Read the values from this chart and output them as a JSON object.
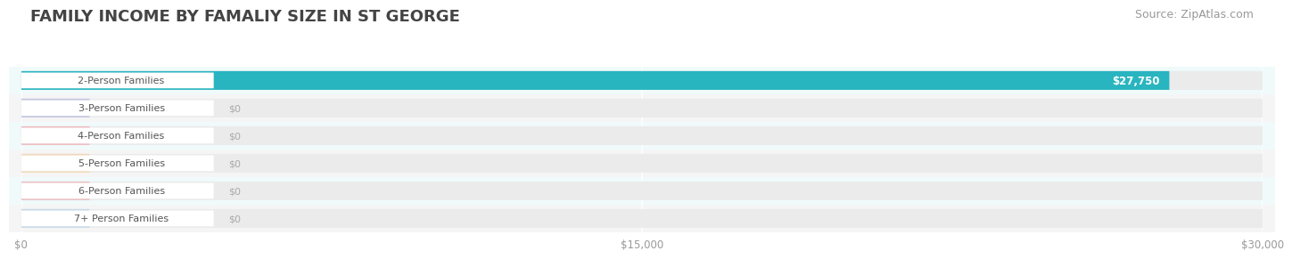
{
  "title": "FAMILY INCOME BY FAMALIY SIZE IN ST GEORGE",
  "source": "Source: ZipAtlas.com",
  "categories": [
    "2-Person Families",
    "3-Person Families",
    "4-Person Families",
    "5-Person Families",
    "6-Person Families",
    "7+ Person Families"
  ],
  "values": [
    27750,
    0,
    0,
    0,
    0,
    0
  ],
  "bar_colors": [
    "#29b5c0",
    "#9b9fd4",
    "#f0909a",
    "#f5c98a",
    "#e89aa0",
    "#a8c8e8"
  ],
  "label_text_colors": [
    "#29b5c0",
    "#8888cc",
    "#e07880",
    "#d4a050",
    "#d07878",
    "#7aaad0"
  ],
  "value_labels": [
    "$27,750",
    "$0",
    "$0",
    "$0",
    "$0",
    "$0"
  ],
  "xlim": [
    0,
    30000
  ],
  "xticks": [
    0,
    15000,
    30000
  ],
  "xticklabels": [
    "$0",
    "$15,000",
    "$30,000"
  ],
  "background_color": "#ffffff",
  "bar_bg_color": "#ebebeb",
  "row_bg_colors": [
    "#f0fafa",
    "#f5f5f5",
    "#f0fafa",
    "#f5f5f5",
    "#f0fafa",
    "#f5f5f5"
  ],
  "title_fontsize": 13,
  "source_fontsize": 9,
  "bar_height": 0.68,
  "figsize": [
    14.06,
    3.05
  ]
}
